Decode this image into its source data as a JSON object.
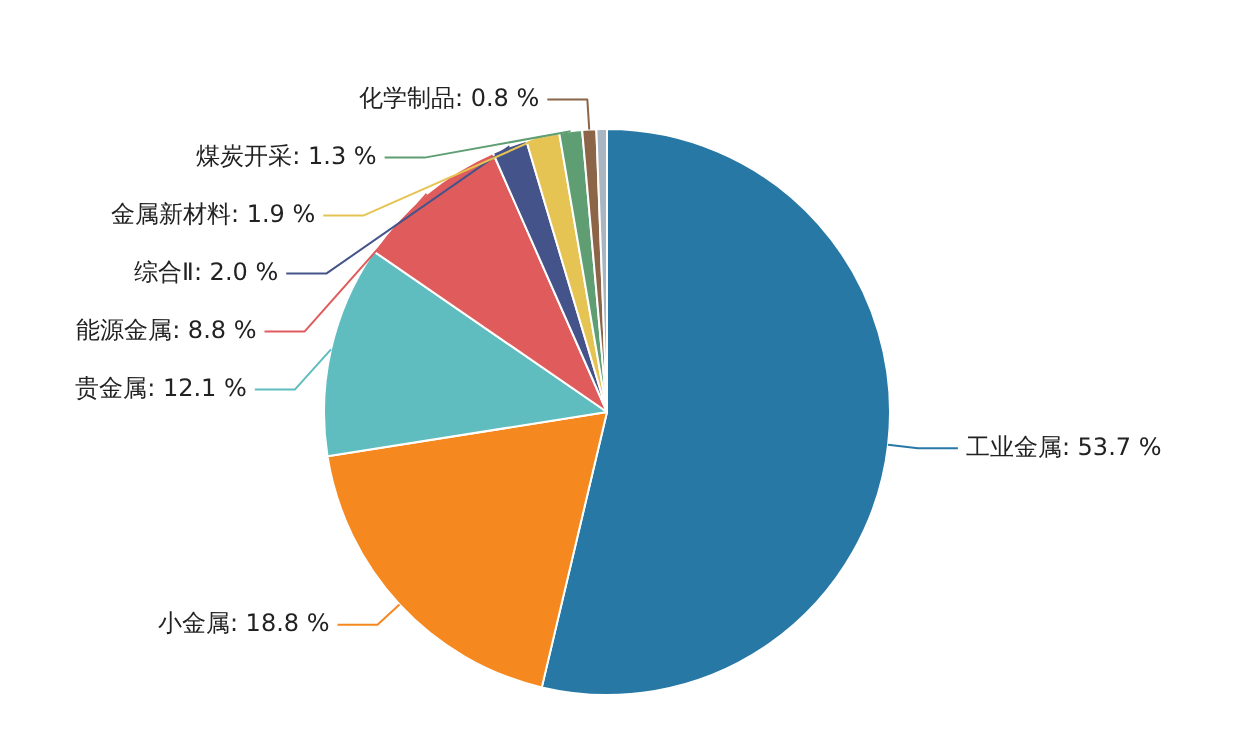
{
  "chart_data": {
    "type": "pie",
    "categories": [
      "工业金属",
      "小金属",
      "贵金属",
      "能源金属",
      "综合Ⅱ",
      "金属新材料",
      "煤炭开采",
      "化学制品",
      null
    ],
    "values": [
      53.7,
      18.8,
      12.1,
      8.8,
      2.0,
      1.9,
      1.3,
      0.8,
      0.6
    ],
    "colors": [
      "#2878a6",
      "#f5891f",
      "#5fbdbf",
      "#e05c5c",
      "#44548a",
      "#e6c454",
      "#5f9e73",
      "#8c6549",
      "#a9b5c0"
    ],
    "value_labels": [
      "53.7 %",
      "18.8 %",
      "12.1 %",
      "8.8 %",
      "2.0 %",
      "1.9 %",
      "1.3 %",
      "0.8 %",
      null
    ]
  }
}
